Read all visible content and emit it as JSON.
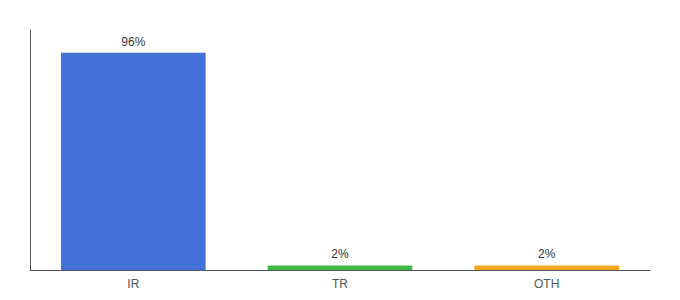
{
  "chart_data": {
    "type": "bar",
    "categories": [
      "IR",
      "TR",
      "OTH"
    ],
    "values": [
      96,
      2,
      2
    ],
    "value_labels": [
      "96%",
      "2%",
      "2%"
    ],
    "colors": [
      "#4472db",
      "#3cb843",
      "#f5a623"
    ],
    "ylim": [
      0,
      106
    ],
    "yticks": [],
    "grid": false,
    "tick_labels": "x",
    "data_labels": true
  }
}
